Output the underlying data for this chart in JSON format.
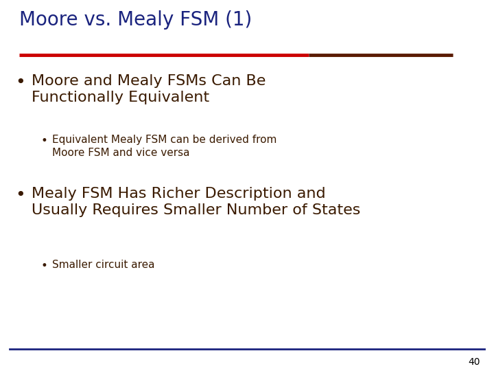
{
  "title": "Moore vs. Mealy FSM (1)",
  "title_color": "#1a237e",
  "title_fontsize": 20,
  "bg_color": "#ffffff",
  "header_line_color1": "#cc0000",
  "header_line_color2": "#5a1a00",
  "footer_line_color": "#1a237e",
  "body_text_color": "#3a1a00",
  "slide_number": "40",
  "slide_number_color": "#000000",
  "bullet1_text_line1": "Moore and Mealy FSMs Can Be",
  "bullet1_text_line2": "Functionally Equivalent",
  "bullet1_fontsize": 16,
  "subbullet1_text_line1": "Equivalent Mealy FSM can be derived from",
  "subbullet1_text_line2": "Moore FSM and vice versa",
  "subbullet1_fontsize": 11,
  "bullet2_text_line1": "Mealy FSM Has Richer Description and",
  "bullet2_text_line2": "Usually Requires Smaller Number of States",
  "bullet2_fontsize": 16,
  "subbullet2_text": "Smaller circuit area",
  "subbullet2_fontsize": 11
}
